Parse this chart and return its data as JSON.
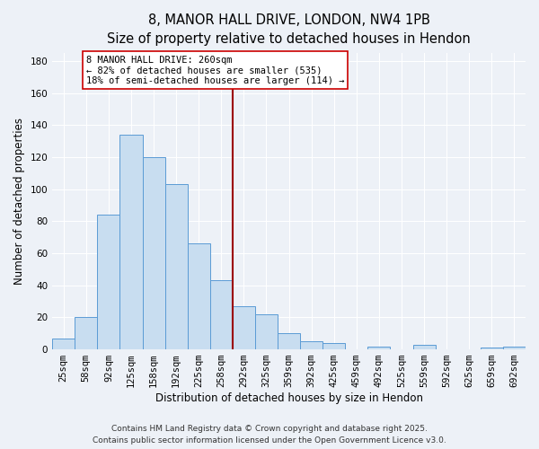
{
  "title": "8, MANOR HALL DRIVE, LONDON, NW4 1PB",
  "subtitle": "Size of property relative to detached houses in Hendon",
  "xlabel": "Distribution of detached houses by size in Hendon",
  "ylabel": "Number of detached properties",
  "categories": [
    "25sqm",
    "58sqm",
    "92sqm",
    "125sqm",
    "158sqm",
    "192sqm",
    "225sqm",
    "258sqm",
    "292sqm",
    "325sqm",
    "359sqm",
    "392sqm",
    "425sqm",
    "459sqm",
    "492sqm",
    "525sqm",
    "559sqm",
    "592sqm",
    "625sqm",
    "659sqm",
    "692sqm"
  ],
  "values": [
    7,
    20,
    84,
    134,
    120,
    103,
    66,
    43,
    27,
    22,
    10,
    5,
    4,
    0,
    2,
    0,
    3,
    0,
    0,
    1,
    2
  ],
  "bar_color": "#c8ddf0",
  "bar_edge_color": "#5b9bd5",
  "ylim": [
    0,
    185
  ],
  "yticks": [
    0,
    20,
    40,
    60,
    80,
    100,
    120,
    140,
    160,
    180
  ],
  "vline_x": 7.5,
  "vline_color": "#9b0000",
  "annotation_text": "8 MANOR HALL DRIVE: 260sqm\n← 82% of detached houses are smaller (535)\n18% of semi-detached houses are larger (114) →",
  "annotation_box_color": "#ffffff",
  "annotation_box_edge_color": "#cc0000",
  "footer1": "Contains HM Land Registry data © Crown copyright and database right 2025.",
  "footer2": "Contains public sector information licensed under the Open Government Licence v3.0.",
  "background_color": "#edf1f7",
  "grid_color": "#ffffff",
  "title_fontsize": 10.5,
  "subtitle_fontsize": 9.5,
  "axis_label_fontsize": 8.5,
  "tick_fontsize": 7.5,
  "annotation_fontsize": 7.5,
  "footer_fontsize": 6.5
}
